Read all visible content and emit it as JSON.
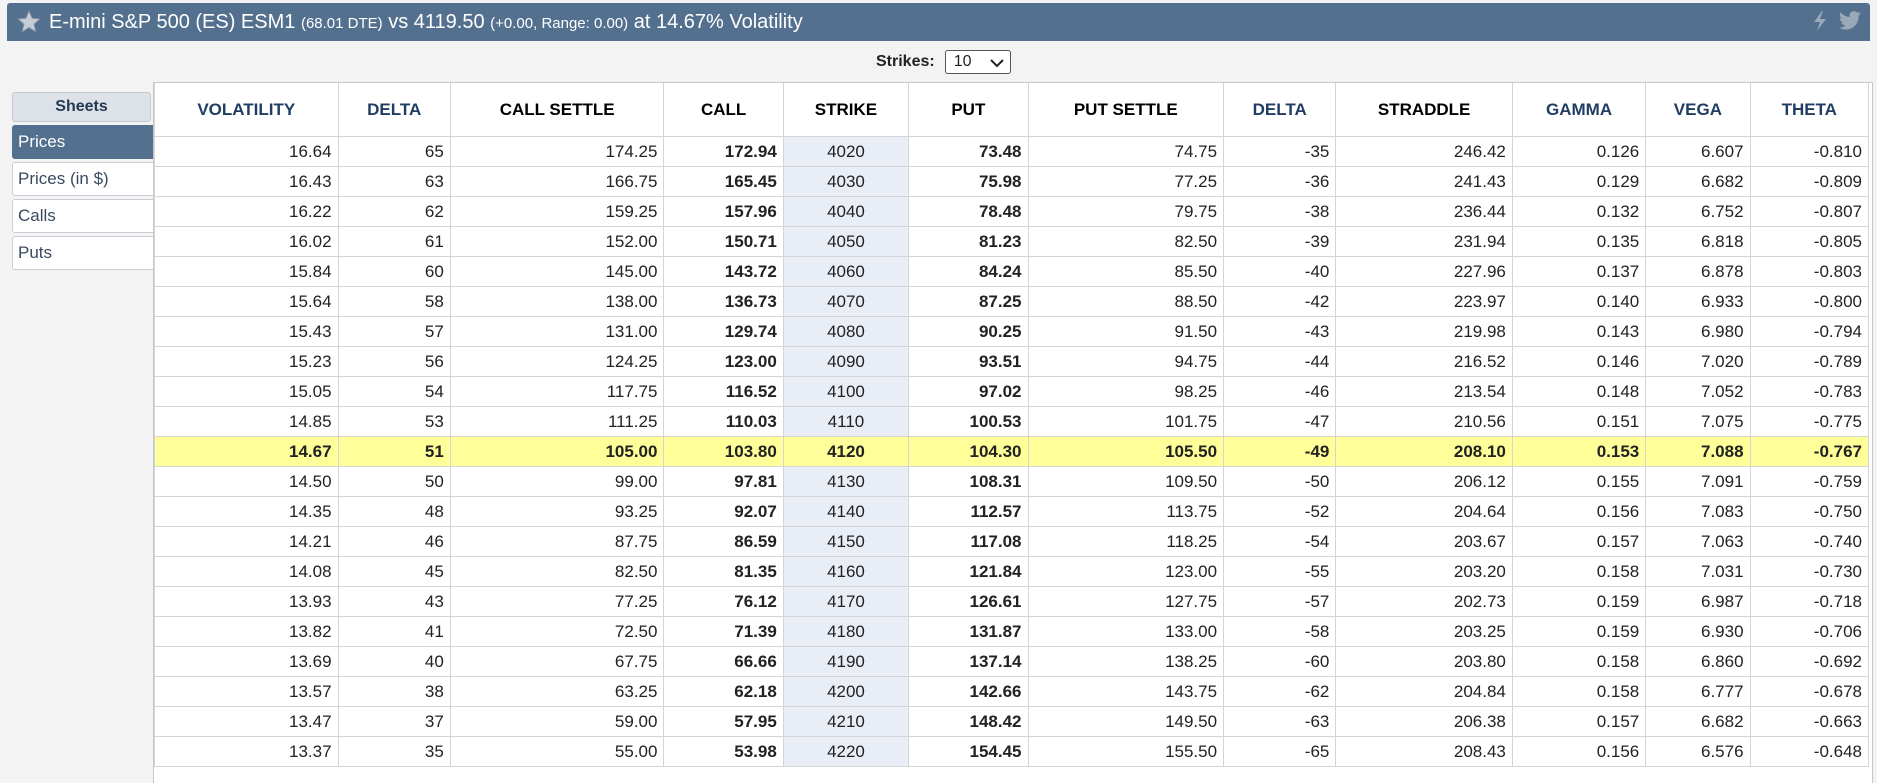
{
  "header": {
    "title_main": "E-mini S&P 500 (ES) ESM1",
    "dte": "(68.01 DTE)",
    "vs": "vs 4119.50",
    "change_range": "(+0.00,  Range: 0.00)",
    "volatility": "at 14.67% Volatility"
  },
  "strikes": {
    "label": "Strikes:",
    "value": "10"
  },
  "sheets": {
    "title": "Sheets",
    "items": [
      {
        "label": "Prices",
        "active": true
      },
      {
        "label": "Prices (in $)",
        "active": false
      },
      {
        "label": "Calls",
        "active": false
      },
      {
        "label": "Puts",
        "active": false
      }
    ]
  },
  "table": {
    "columns": [
      "VOLATILITY",
      "DELTA",
      "CALL SETTLE",
      "CALL",
      "STRIKE",
      "PUT",
      "PUT SETTLE",
      "DELTA",
      "STRADDLE",
      "GAMMA",
      "VEGA",
      "THETA"
    ],
    "atm_strike": "4120",
    "rows": [
      [
        "16.64",
        "65",
        "174.25",
        "172.94",
        "4020",
        "73.48",
        "74.75",
        "-35",
        "246.42",
        "0.126",
        "6.607",
        "-0.810"
      ],
      [
        "16.43",
        "63",
        "166.75",
        "165.45",
        "4030",
        "75.98",
        "77.25",
        "-36",
        "241.43",
        "0.129",
        "6.682",
        "-0.809"
      ],
      [
        "16.22",
        "62",
        "159.25",
        "157.96",
        "4040",
        "78.48",
        "79.75",
        "-38",
        "236.44",
        "0.132",
        "6.752",
        "-0.807"
      ],
      [
        "16.02",
        "61",
        "152.00",
        "150.71",
        "4050",
        "81.23",
        "82.50",
        "-39",
        "231.94",
        "0.135",
        "6.818",
        "-0.805"
      ],
      [
        "15.84",
        "60",
        "145.00",
        "143.72",
        "4060",
        "84.24",
        "85.50",
        "-40",
        "227.96",
        "0.137",
        "6.878",
        "-0.803"
      ],
      [
        "15.64",
        "58",
        "138.00",
        "136.73",
        "4070",
        "87.25",
        "88.50",
        "-42",
        "223.97",
        "0.140",
        "6.933",
        "-0.800"
      ],
      [
        "15.43",
        "57",
        "131.00",
        "129.74",
        "4080",
        "90.25",
        "91.50",
        "-43",
        "219.98",
        "0.143",
        "6.980",
        "-0.794"
      ],
      [
        "15.23",
        "56",
        "124.25",
        "123.00",
        "4090",
        "93.51",
        "94.75",
        "-44",
        "216.52",
        "0.146",
        "7.020",
        "-0.789"
      ],
      [
        "15.05",
        "54",
        "117.75",
        "116.52",
        "4100",
        "97.02",
        "98.25",
        "-46",
        "213.54",
        "0.148",
        "7.052",
        "-0.783"
      ],
      [
        "14.85",
        "53",
        "111.25",
        "110.03",
        "4110",
        "100.53",
        "101.75",
        "-47",
        "210.56",
        "0.151",
        "7.075",
        "-0.775"
      ],
      [
        "14.67",
        "51",
        "105.00",
        "103.80",
        "4120",
        "104.30",
        "105.50",
        "-49",
        "208.10",
        "0.153",
        "7.088",
        "-0.767"
      ],
      [
        "14.50",
        "50",
        "99.00",
        "97.81",
        "4130",
        "108.31",
        "109.50",
        "-50",
        "206.12",
        "0.155",
        "7.091",
        "-0.759"
      ],
      [
        "14.35",
        "48",
        "93.25",
        "92.07",
        "4140",
        "112.57",
        "113.75",
        "-52",
        "204.64",
        "0.156",
        "7.083",
        "-0.750"
      ],
      [
        "14.21",
        "46",
        "87.75",
        "86.59",
        "4150",
        "117.08",
        "118.25",
        "-54",
        "203.67",
        "0.157",
        "7.063",
        "-0.740"
      ],
      [
        "14.08",
        "45",
        "82.50",
        "81.35",
        "4160",
        "121.84",
        "123.00",
        "-55",
        "203.20",
        "0.158",
        "7.031",
        "-0.730"
      ],
      [
        "13.93",
        "43",
        "77.25",
        "76.12",
        "4170",
        "126.61",
        "127.75",
        "-57",
        "202.73",
        "0.159",
        "6.987",
        "-0.718"
      ],
      [
        "13.82",
        "41",
        "72.50",
        "71.39",
        "4180",
        "131.87",
        "133.00",
        "-58",
        "203.25",
        "0.159",
        "6.930",
        "-0.706"
      ],
      [
        "13.69",
        "40",
        "67.75",
        "66.66",
        "4190",
        "137.14",
        "138.25",
        "-60",
        "203.80",
        "0.158",
        "6.860",
        "-0.692"
      ],
      [
        "13.57",
        "38",
        "63.25",
        "62.18",
        "4200",
        "142.66",
        "143.75",
        "-62",
        "204.84",
        "0.158",
        "6.777",
        "-0.678"
      ],
      [
        "13.47",
        "37",
        "59.00",
        "57.95",
        "4210",
        "148.42",
        "149.50",
        "-63",
        "206.38",
        "0.157",
        "6.682",
        "-0.663"
      ],
      [
        "13.37",
        "35",
        "55.00",
        "53.98",
        "4220",
        "154.45",
        "155.50",
        "-65",
        "208.43",
        "0.156",
        "6.576",
        "-0.648"
      ]
    ]
  },
  "icons": {
    "favorite": "star-icon",
    "flash": "lightning-icon",
    "share": "twitter-icon"
  },
  "colors": {
    "header_bg": "#53708f",
    "atm_highlight": "#ffff99",
    "strike_col_bg": "#e9eef6"
  }
}
